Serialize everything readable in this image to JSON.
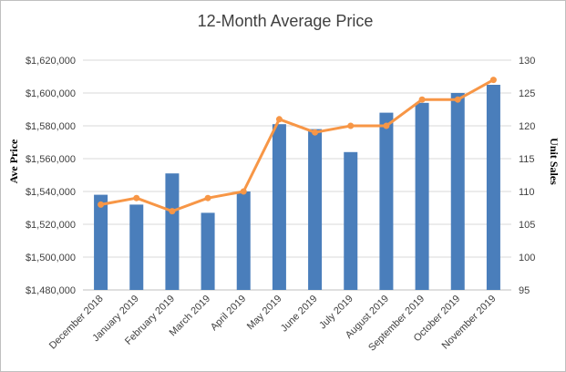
{
  "chart_data": {
    "type": "bar",
    "title": "12-Month Average Price",
    "ylabel": "Ave Price",
    "y2label": "Unit Sales",
    "xlabel": "",
    "categories": [
      "December 2018",
      "January 2019",
      "February 2019",
      "March 2019",
      "April 2019",
      "May 2019",
      "June 2019",
      "July 2019",
      "August 2019",
      "September 2019",
      "October 2019",
      "November 2019"
    ],
    "ylim": [
      1480000,
      1620000
    ],
    "y_ticks": [
      1480000,
      1500000,
      1520000,
      1540000,
      1560000,
      1580000,
      1600000,
      1620000
    ],
    "y_tick_labels": [
      "$1,480,000",
      "$1,500,000",
      "$1,520,000",
      "$1,540,000",
      "$1,560,000",
      "$1,580,000",
      "$1,600,000",
      "$1,620,000"
    ],
    "y2lim": [
      95,
      130
    ],
    "y2_ticks": [
      95,
      100,
      105,
      110,
      115,
      120,
      125,
      130
    ],
    "y2_tick_labels": [
      "95",
      "100",
      "105",
      "110",
      "115",
      "120",
      "125",
      "130"
    ],
    "grid": true,
    "legend": "none",
    "series": [
      {
        "type": "bar",
        "axis": "left",
        "color": "#4a7ebb",
        "values": [
          1538000,
          1532000,
          1551000,
          1527000,
          1540000,
          1581000,
          1578000,
          1564000,
          1588000,
          1594000,
          1600000,
          1605000
        ]
      },
      {
        "type": "line",
        "axis": "right",
        "color": "#f79646",
        "values": [
          108,
          109,
          107,
          109,
          110,
          121,
          119,
          120,
          120,
          124,
          124,
          127
        ]
      }
    ]
  }
}
